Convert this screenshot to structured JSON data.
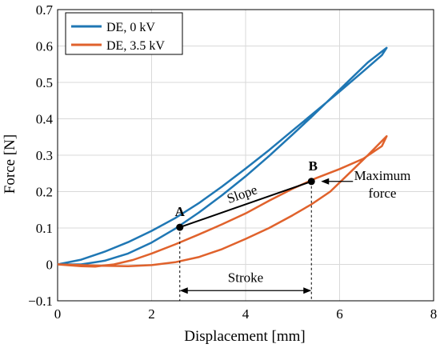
{
  "chart_data": {
    "type": "line",
    "xlabel": "Displacement [mm]",
    "ylabel": "Force [N]",
    "xlim": [
      0,
      8
    ],
    "ylim": [
      -0.1,
      0.7
    ],
    "xticks": [
      0,
      2,
      4,
      6,
      8
    ],
    "yticks": [
      -0.1,
      0,
      0.1,
      0.2,
      0.3,
      0.4,
      0.5,
      0.6,
      0.7
    ],
    "xtick_labels": [
      "0",
      "2",
      "4",
      "6",
      "8"
    ],
    "ytick_labels": [
      "−0.1",
      "0",
      "0.1",
      "0.2",
      "0.3",
      "0.4",
      "0.5",
      "0.6",
      "0.7"
    ],
    "grid": true,
    "legend_position": "top-left",
    "series": [
      {
        "name": "DE, 0 kV",
        "color": "#1f77b4",
        "x": [
          0,
          0.5,
          1.0,
          1.5,
          2.0,
          2.5,
          3.0,
          3.5,
          4.0,
          4.5,
          5.0,
          5.5,
          6.0,
          6.5,
          6.9,
          7.0,
          6.6,
          6.2,
          5.8,
          5.4,
          5.0,
          4.5,
          4.0,
          3.5,
          3.0,
          2.5,
          2.0,
          1.5,
          1.0,
          0.5,
          0
        ],
        "y": [
          0,
          0.013,
          0.035,
          0.061,
          0.092,
          0.127,
          0.168,
          0.214,
          0.263,
          0.314,
          0.368,
          0.421,
          0.475,
          0.53,
          0.575,
          0.595,
          0.555,
          0.505,
          0.455,
          0.405,
          0.357,
          0.298,
          0.242,
          0.19,
          0.142,
          0.098,
          0.06,
          0.03,
          0.01,
          0.0,
          0
        ]
      },
      {
        "name": "DE, 3.5 kV",
        "color": "#e0622c",
        "x": [
          0,
          0.5,
          0.8,
          1.2,
          1.6,
          2.0,
          2.5,
          3.0,
          3.5,
          4.0,
          4.5,
          5.0,
          5.5,
          6.0,
          6.5,
          6.9,
          7.0,
          6.6,
          6.2,
          5.8,
          5.4,
          5.0,
          4.5,
          4.0,
          3.5,
          3.0,
          2.5,
          2.0,
          1.5,
          1.0,
          0.5,
          0
        ],
        "y": [
          0,
          -0.005,
          -0.006,
          0.0,
          0.012,
          0.03,
          0.055,
          0.082,
          0.11,
          0.14,
          0.175,
          0.208,
          0.237,
          0.262,
          0.29,
          0.325,
          0.352,
          0.3,
          0.25,
          0.2,
          0.165,
          0.135,
          0.1,
          0.07,
          0.042,
          0.02,
          0.006,
          -0.002,
          -0.005,
          -0.004,
          -0.002,
          0
        ]
      }
    ],
    "annotations": {
      "point_a": {
        "label": "A",
        "x": 2.6,
        "y": 0.102
      },
      "point_b": {
        "label": "B",
        "x": 5.4,
        "y": 0.228
      },
      "slope_label": "Slope",
      "max_force_line1": "Maximum",
      "max_force_line2": "force",
      "stroke_label": "Stroke",
      "stroke_y": -0.072,
      "stroke_label_x": 4.0
    }
  }
}
